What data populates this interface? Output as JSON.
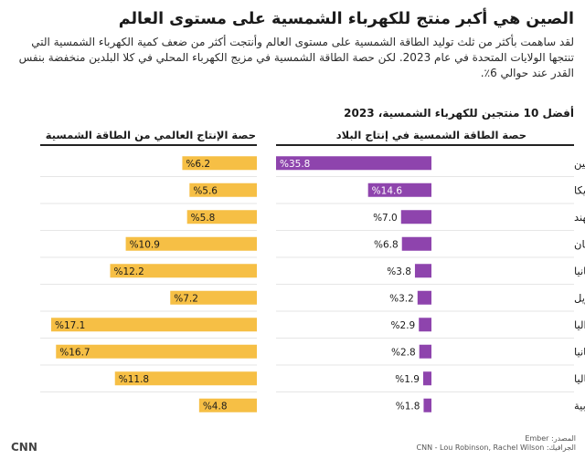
{
  "title": "الصين هي أكبر منتج للكهرباء الشمسية على مستوى العالم",
  "subtitle": "لقد ساهمت بأكثر من ثلث توليد الطاقة الشمسية على مستوى العالم وأنتجت أكثر من ضعف كمية الكهرباء الشمسية التي تنتجها الولايات المتحدة في عام 2023. لكن حصة الطاقة الشمسية في مزيج الكهرباء المحلي في كلا البلدين منخفضة بنفس القدر عند حوالي 6٪.",
  "chart_heading": "أفضل 10 منتجين للكهرباء الشمسية، 2023",
  "source_line1": "المصدر: Ember",
  "source_line2": "الجرافيك: CNN - Lou Robinson, Rachel Wilson",
  "logo_text": "CNN",
  "colors": {
    "global_share": "#8e44ad",
    "domestic_share": "#f6bf45"
  },
  "chart_data": {
    "type": "bar",
    "categories": [
      "الصين",
      "أمريكا",
      "الهند",
      "اليابان",
      "ألمانيا",
      "البرازيل",
      "أستراليا",
      "إسبانيا",
      "إيطاليا",
      "كوريا الجنوبية"
    ],
    "series": [
      {
        "name": "حصة الإنتاج العالمي من الطاقة الشمسية",
        "values": [
          35.8,
          14.6,
          7.0,
          6.8,
          3.8,
          3.2,
          2.9,
          2.8,
          1.9,
          1.8
        ],
        "labels": [
          "%35.8",
          "%14.6",
          "%7.0",
          "%6.8",
          "%3.8",
          "%3.2",
          "%2.9",
          "%2.8",
          "%1.9",
          "%1.8"
        ]
      },
      {
        "name": "حصة الطاقة الشمسية في إنتاج البلاد",
        "values": [
          6.2,
          5.6,
          5.8,
          10.9,
          12.2,
          7.2,
          17.1,
          16.7,
          11.8,
          4.8
        ],
        "labels": [
          "%6.2",
          "%5.6",
          "%5.8",
          "%10.9",
          "%12.2",
          "%7.2",
          "%17.1",
          "%16.7",
          "%11.8",
          "%4.8"
        ]
      }
    ]
  }
}
